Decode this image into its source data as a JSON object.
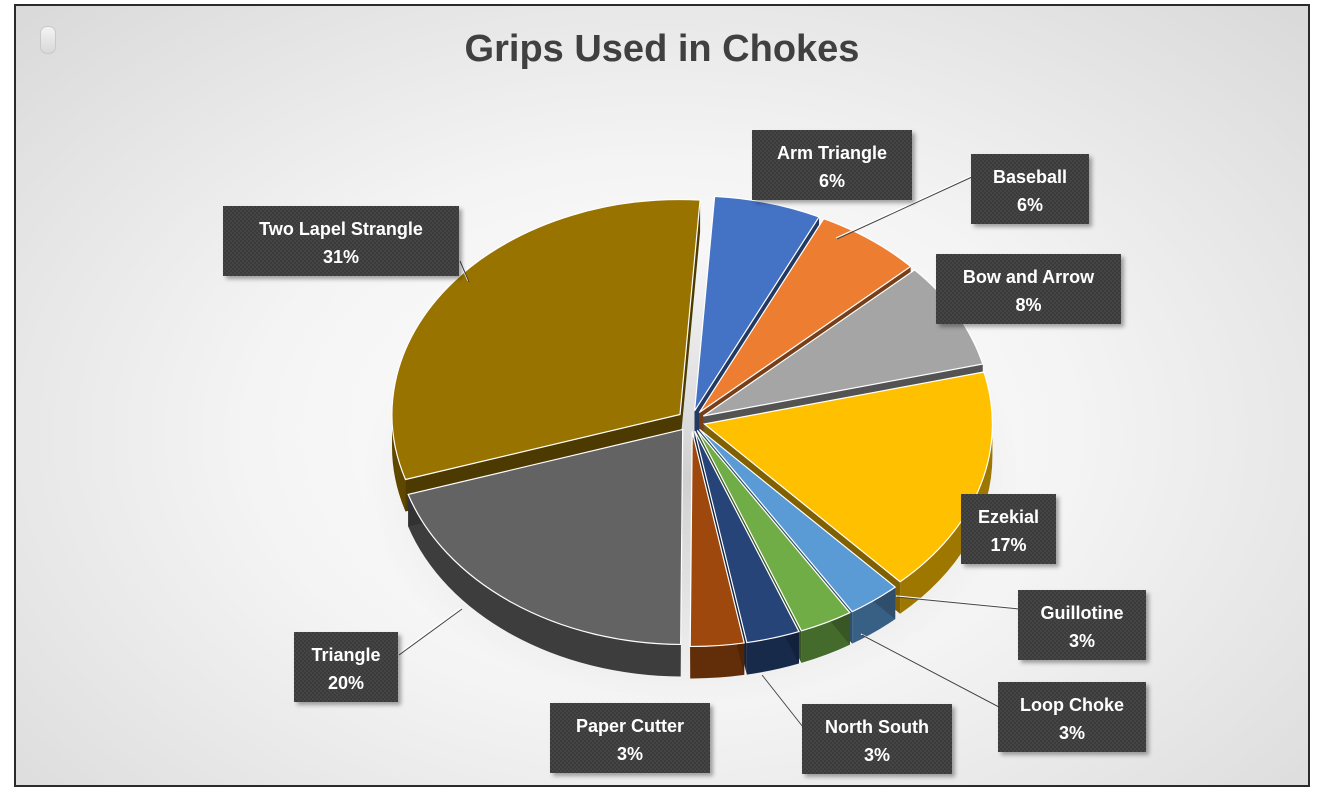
{
  "chart_data": {
    "type": "pie",
    "title": "Grips Used in Chokes",
    "slices": [
      {
        "name": "Arm Triangle",
        "percent_label": "6%",
        "value": 6,
        "color": "#4472C4"
      },
      {
        "name": "Baseball",
        "percent_label": "6%",
        "value": 6,
        "color": "#ED7D31"
      },
      {
        "name": "Bow and Arrow",
        "percent_label": "8%",
        "value": 8,
        "color": "#A5A5A5"
      },
      {
        "name": "Ezekial",
        "percent_label": "17%",
        "value": 17,
        "color": "#FFC000"
      },
      {
        "name": "Guillotine",
        "percent_label": "3%",
        "value": 3,
        "color": "#5B9BD5"
      },
      {
        "name": "Loop Choke",
        "percent_label": "3%",
        "value": 3,
        "color": "#70AD47"
      },
      {
        "name": "North South",
        "percent_label": "3%",
        "value": 3,
        "color": "#264478"
      },
      {
        "name": "Paper Cutter",
        "percent_label": "3%",
        "value": 3,
        "color": "#9E480E"
      },
      {
        "name": "Triangle",
        "percent_label": "20%",
        "value": 20,
        "color": "#636363"
      },
      {
        "name": "Two Lapel Strangle",
        "percent_label": "31%",
        "value": 31,
        "color": "#997300"
      }
    ],
    "legend": "none",
    "style": "3d-exploded"
  }
}
